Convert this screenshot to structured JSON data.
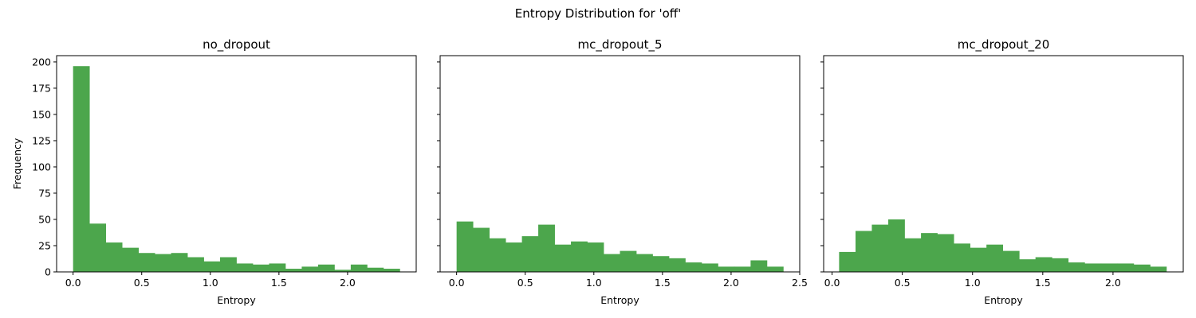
{
  "figure": {
    "suptitle": "Entropy Distribution for 'off'",
    "bar_color": "#4ca64c"
  },
  "chart_data": [
    {
      "type": "bar",
      "title": "no_dropout",
      "xlabel": "Entropy",
      "ylabel": "Frequency",
      "xlim": [
        -0.12,
        2.5
      ],
      "ylim": [
        0,
        206
      ],
      "xticks": [
        0.0,
        0.5,
        1.0,
        1.5,
        2.0
      ],
      "xtick_labels": [
        "0.0",
        "0.5",
        "1.0",
        "1.5",
        "2.0"
      ],
      "yticks": [
        0,
        25,
        50,
        75,
        100,
        125,
        150,
        175,
        200
      ],
      "ytick_labels": [
        "0",
        "25",
        "50",
        "75",
        "100",
        "125",
        "150",
        "175",
        "200"
      ],
      "bin_edges": [
        0.0,
        0.119,
        0.238,
        0.357,
        0.476,
        0.595,
        0.714,
        0.833,
        0.952,
        1.071,
        1.19,
        1.309,
        1.428,
        1.547,
        1.666,
        1.785,
        1.904,
        2.023,
        2.142,
        2.261,
        2.38
      ],
      "values": [
        196,
        46,
        28,
        23,
        18,
        17,
        18,
        14,
        10,
        14,
        8,
        7,
        8,
        3,
        5,
        7,
        2,
        7,
        4,
        3
      ]
    },
    {
      "type": "bar",
      "title": "mc_dropout_5",
      "xlabel": "Entropy",
      "ylabel": "",
      "xlim": [
        -0.12,
        2.5
      ],
      "ylim": [
        0,
        206
      ],
      "xticks": [
        0.0,
        0.5,
        1.0,
        1.5,
        2.0,
        2.5
      ],
      "xtick_labels": [
        "0.0",
        "0.5",
        "1.0",
        "1.5",
        "2.0",
        "2.5"
      ],
      "yticks": [
        0,
        25,
        50,
        75,
        100,
        125,
        150,
        175,
        200
      ],
      "ytick_labels": [],
      "bin_edges": [
        0.0,
        0.119,
        0.238,
        0.357,
        0.476,
        0.595,
        0.714,
        0.833,
        0.952,
        1.071,
        1.19,
        1.309,
        1.428,
        1.547,
        1.666,
        1.785,
        1.904,
        2.023,
        2.142,
        2.261,
        2.38
      ],
      "values": [
        48,
        42,
        32,
        28,
        34,
        45,
        26,
        29,
        28,
        17,
        20,
        17,
        15,
        13,
        9,
        8,
        5,
        5,
        11,
        5
      ]
    },
    {
      "type": "bar",
      "title": "mc_dropout_20",
      "xlabel": "Entropy",
      "ylabel": "",
      "xlim": [
        -0.06,
        2.5
      ],
      "ylim": [
        0,
        206
      ],
      "xticks": [
        0.0,
        0.5,
        1.0,
        1.5,
        2.0
      ],
      "xtick_labels": [
        "0.0",
        "0.5",
        "1.0",
        "1.5",
        "2.0"
      ],
      "yticks": [
        0,
        25,
        50,
        75,
        100,
        125,
        150,
        175,
        200
      ],
      "ytick_labels": [],
      "bin_edges": [
        0.05,
        0.167,
        0.283,
        0.4,
        0.516,
        0.633,
        0.749,
        0.866,
        0.982,
        1.099,
        1.215,
        1.332,
        1.448,
        1.565,
        1.681,
        1.798,
        1.914,
        2.031,
        2.147,
        2.264,
        2.38
      ],
      "values": [
        19,
        39,
        45,
        50,
        32,
        37,
        36,
        27,
        23,
        26,
        20,
        12,
        14,
        13,
        9,
        8,
        8,
        8,
        7,
        5
      ]
    }
  ]
}
